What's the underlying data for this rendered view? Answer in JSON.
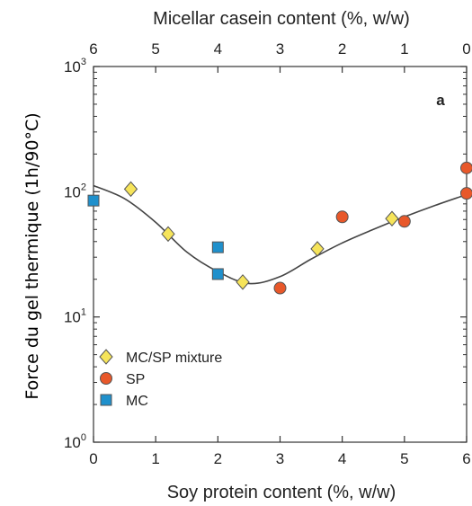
{
  "chart_data": {
    "type": "scatter",
    "panel_label": "a",
    "top_axis": {
      "label": "Micellar casein content (%, w/w)",
      "ticks": [
        "6",
        "5",
        "4",
        "3",
        "2",
        "1",
        "0"
      ]
    },
    "x_axis": {
      "label": "Soy protein content (%, w/w)",
      "ticks": [
        "0",
        "1",
        "2",
        "3",
        "4",
        "5",
        "6"
      ],
      "range": [
        0,
        6
      ]
    },
    "y_axis": {
      "label": "Force du gel thermique (1h/90°C)",
      "scale": "log",
      "range": [
        1,
        1000
      ],
      "ticks": [
        {
          "base": "10",
          "exp": "0",
          "value": 1
        },
        {
          "base": "10",
          "exp": "1",
          "value": 10
        },
        {
          "base": "10",
          "exp": "2",
          "value": 100
        },
        {
          "base": "10",
          "exp": "3",
          "value": 1000
        }
      ],
      "label_color": "#2ab0b8"
    },
    "series": [
      {
        "name": "MC/SP mixture",
        "marker": "diamond",
        "color": "#f6e45a",
        "points": [
          {
            "x": 0.6,
            "y": 105
          },
          {
            "x": 1.2,
            "y": 46
          },
          {
            "x": 2.4,
            "y": 19
          },
          {
            "x": 3.6,
            "y": 35
          },
          {
            "x": 4.8,
            "y": 61
          }
        ]
      },
      {
        "name": "SP",
        "marker": "circle",
        "color": "#e8582a",
        "points": [
          {
            "x": 3.0,
            "y": 17
          },
          {
            "x": 4.0,
            "y": 63
          },
          {
            "x": 5.0,
            "y": 58
          },
          {
            "x": 6.0,
            "y": 97
          },
          {
            "x": 6.0,
            "y": 155
          }
        ]
      },
      {
        "name": "MC",
        "marker": "square",
        "color": "#1f90cc",
        "points": [
          {
            "x": 0.0,
            "y": 85
          },
          {
            "x": 2.0,
            "y": 36
          },
          {
            "x": 2.0,
            "y": 22
          }
        ]
      }
    ],
    "fit_curve": [
      {
        "x": 0.0,
        "y": 112
      },
      {
        "x": 0.5,
        "y": 88
      },
      {
        "x": 1.0,
        "y": 57
      },
      {
        "x": 1.5,
        "y": 33
      },
      {
        "x": 2.0,
        "y": 23
      },
      {
        "x": 2.5,
        "y": 18.5
      },
      {
        "x": 3.0,
        "y": 21
      },
      {
        "x": 3.5,
        "y": 29
      },
      {
        "x": 4.0,
        "y": 39
      },
      {
        "x": 4.5,
        "y": 50
      },
      {
        "x": 5.0,
        "y": 63
      },
      {
        "x": 5.5,
        "y": 78
      },
      {
        "x": 6.0,
        "y": 95
      }
    ],
    "legend_position": "bottom-left",
    "grid": false
  }
}
